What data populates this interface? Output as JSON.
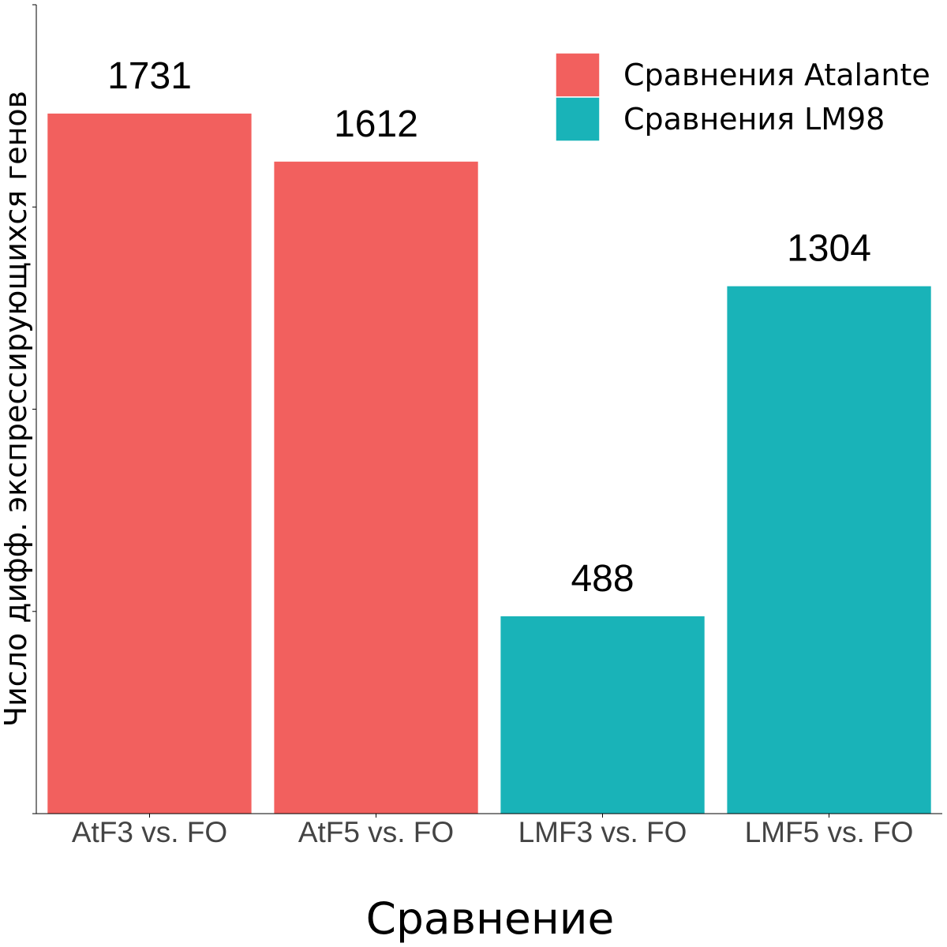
{
  "chart_data": {
    "type": "bar",
    "categories": [
      "AtF3 vs. FO",
      "AtF5 vs. FO",
      "LMF3 vs. FO",
      "LMF5 vs. FO"
    ],
    "values": [
      1731,
      1612,
      488,
      1304
    ],
    "value_labels": [
      "1731",
      "1612",
      "488",
      "1304"
    ],
    "groups": [
      "Сравнения Atalante",
      "Сравнения Atalante",
      "Сравнения LM98",
      "Сравнения LM98"
    ],
    "xlabel": "Сравнение",
    "ylabel": "Число дифф. экспрессирующихся генов",
    "ylim": [
      0,
      2000
    ],
    "y_ticks": [
      0,
      500,
      1000,
      1500,
      2000
    ],
    "grid": false,
    "legend": {
      "placement": "top-right",
      "entries": [
        {
          "name": "Сравнения Atalante",
          "color": "#F2605E"
        },
        {
          "name": "Сравнения LM98",
          "color": "#19B3B8"
        }
      ]
    }
  }
}
